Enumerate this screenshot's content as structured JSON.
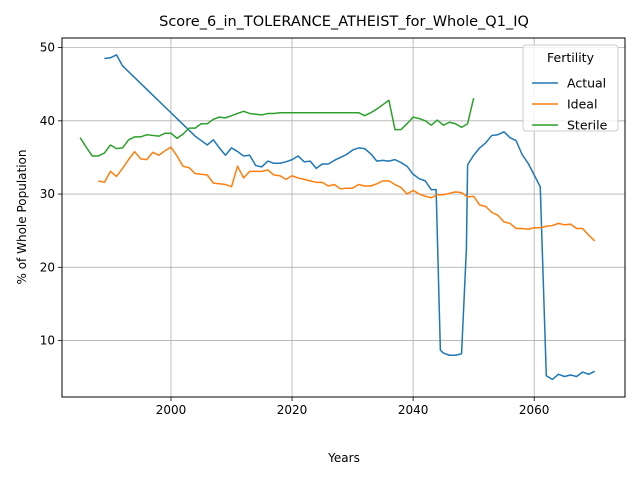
{
  "chart_data": {
    "type": "line",
    "title": "Score_6_in_TOLERANCE_ATHEIST_for_Whole_Q1_IQ",
    "xlabel": "Years",
    "ylabel": "% of Whole Population",
    "xlim": [
      1982,
      2075
    ],
    "ylim": [
      2.3,
      51.3
    ],
    "xticks": [
      2000,
      2020,
      2040,
      2060
    ],
    "yticks": [
      10,
      20,
      30,
      40,
      50
    ],
    "grid": true,
    "legend": {
      "title": "Fertility",
      "placement": "upper right"
    },
    "series": [
      {
        "name": "Actual",
        "color": "#1f77b4",
        "points": [
          [
            1989,
            48.5
          ],
          [
            1990,
            48.6
          ],
          [
            1991,
            49.0
          ],
          [
            1992,
            47.5
          ],
          [
            1993,
            46.7
          ],
          [
            1994,
            45.9
          ],
          [
            1995,
            45.1
          ],
          [
            1996,
            44.3
          ],
          [
            1997,
            43.5
          ],
          [
            1998,
            42.7
          ],
          [
            1999,
            41.9
          ],
          [
            2000,
            41.1
          ],
          [
            2001,
            40.3
          ],
          [
            2002,
            39.5
          ],
          [
            2003,
            38.7
          ],
          [
            2004,
            37.9
          ],
          [
            2005,
            37.3
          ],
          [
            2006,
            36.7
          ],
          [
            2007,
            37.4
          ],
          [
            2008,
            36.3
          ],
          [
            2009,
            35.3
          ],
          [
            2010,
            36.3
          ],
          [
            2011,
            35.8
          ],
          [
            2012,
            35.2
          ],
          [
            2013,
            35.3
          ],
          [
            2014,
            33.9
          ],
          [
            2015,
            33.7
          ],
          [
            2016,
            34.5
          ],
          [
            2017,
            34.2
          ],
          [
            2018,
            34.2
          ],
          [
            2019,
            34.4
          ],
          [
            2020,
            34.7
          ],
          [
            2021,
            35.2
          ],
          [
            2022,
            34.4
          ],
          [
            2023,
            34.5
          ],
          [
            2024,
            33.5
          ],
          [
            2025,
            34.1
          ],
          [
            2026,
            34.1
          ],
          [
            2027,
            34.6
          ],
          [
            2028,
            35.0
          ],
          [
            2029,
            35.4
          ],
          [
            2030,
            36.0
          ],
          [
            2031,
            36.3
          ],
          [
            2032,
            36.2
          ],
          [
            2033,
            35.5
          ],
          [
            2034,
            34.5
          ],
          [
            2035,
            34.6
          ],
          [
            2036,
            34.5
          ],
          [
            2037,
            34.7
          ],
          [
            2038,
            34.3
          ],
          [
            2039,
            33.8
          ],
          [
            2040,
            32.7
          ],
          [
            2041,
            32.1
          ],
          [
            2042,
            31.8
          ],
          [
            2043,
            30.6
          ],
          [
            2043.8,
            30.6
          ],
          [
            2044.5,
            8.7
          ],
          [
            2045,
            8.3
          ],
          [
            2046,
            8.0
          ],
          [
            2047,
            8.0
          ],
          [
            2048,
            8.2
          ],
          [
            2048.8,
            22.5
          ],
          [
            2049,
            34.0
          ],
          [
            2050,
            35.3
          ],
          [
            2051,
            36.3
          ],
          [
            2052,
            37.0
          ],
          [
            2053,
            38.0
          ],
          [
            2054,
            38.1
          ],
          [
            2055,
            38.5
          ],
          [
            2056,
            37.7
          ],
          [
            2057,
            37.3
          ],
          [
            2058,
            35.4
          ],
          [
            2059,
            34.2
          ],
          [
            2060,
            32.6
          ],
          [
            2061,
            31.0
          ],
          [
            2062,
            5.2
          ],
          [
            2063,
            4.7
          ],
          [
            2064,
            5.4
          ],
          [
            2065,
            5.1
          ],
          [
            2066,
            5.3
          ],
          [
            2067,
            5.1
          ],
          [
            2068,
            5.7
          ],
          [
            2069,
            5.4
          ],
          [
            2070,
            5.8
          ]
        ]
      },
      {
        "name": "Ideal",
        "color": "#ff7f0e",
        "points": [
          [
            1988,
            31.8
          ],
          [
            1989,
            31.6
          ],
          [
            1990,
            33.1
          ],
          [
            1991,
            32.4
          ],
          [
            1992,
            33.5
          ],
          [
            1993,
            34.7
          ],
          [
            1994,
            35.8
          ],
          [
            1995,
            34.8
          ],
          [
            1996,
            34.7
          ],
          [
            1997,
            35.7
          ],
          [
            1998,
            35.3
          ],
          [
            1999,
            35.9
          ],
          [
            2000,
            36.4
          ],
          [
            2001,
            35.2
          ],
          [
            2002,
            33.8
          ],
          [
            2003,
            33.6
          ],
          [
            2004,
            32.8
          ],
          [
            2005,
            32.7
          ],
          [
            2006,
            32.6
          ],
          [
            2007,
            31.5
          ],
          [
            2008,
            31.4
          ],
          [
            2009,
            31.3
          ],
          [
            2010,
            31.0
          ],
          [
            2011,
            33.8
          ],
          [
            2012,
            32.2
          ],
          [
            2013,
            33.1
          ],
          [
            2014,
            33.1
          ],
          [
            2015,
            33.1
          ],
          [
            2016,
            33.3
          ],
          [
            2017,
            32.6
          ],
          [
            2018,
            32.5
          ],
          [
            2019,
            32.0
          ],
          [
            2020,
            32.5
          ],
          [
            2021,
            32.2
          ],
          [
            2022,
            32.0
          ],
          [
            2023,
            31.8
          ],
          [
            2024,
            31.6
          ],
          [
            2025,
            31.6
          ],
          [
            2026,
            31.1
          ],
          [
            2027,
            31.3
          ],
          [
            2028,
            30.7
          ],
          [
            2029,
            30.8
          ],
          [
            2030,
            30.8
          ],
          [
            2031,
            31.3
          ],
          [
            2032,
            31.1
          ],
          [
            2033,
            31.1
          ],
          [
            2034,
            31.4
          ],
          [
            2035,
            31.8
          ],
          [
            2036,
            31.8
          ],
          [
            2037,
            31.3
          ],
          [
            2038,
            30.9
          ],
          [
            2039,
            30.0
          ],
          [
            2040,
            30.5
          ],
          [
            2041,
            30.0
          ],
          [
            2042,
            29.7
          ],
          [
            2043,
            29.5
          ],
          [
            2044,
            29.9
          ],
          [
            2045,
            29.9
          ],
          [
            2046,
            30.1
          ],
          [
            2047,
            30.3
          ],
          [
            2048,
            30.2
          ],
          [
            2049,
            29.6
          ],
          [
            2050,
            29.7
          ],
          [
            2051,
            28.5
          ],
          [
            2052,
            28.3
          ],
          [
            2053,
            27.5
          ],
          [
            2054,
            27.1
          ],
          [
            2055,
            26.2
          ],
          [
            2056,
            26.0
          ],
          [
            2057,
            25.3
          ],
          [
            2058,
            25.3
          ],
          [
            2059,
            25.2
          ],
          [
            2060,
            25.4
          ],
          [
            2061,
            25.4
          ],
          [
            2062,
            25.6
          ],
          [
            2063,
            25.7
          ],
          [
            2064,
            26.0
          ],
          [
            2065,
            25.8
          ],
          [
            2066,
            25.9
          ],
          [
            2067,
            25.3
          ],
          [
            2068,
            25.3
          ],
          [
            2069,
            24.4
          ],
          [
            2070,
            23.6
          ]
        ]
      },
      {
        "name": "Sterile",
        "color": "#2ca02c",
        "points": [
          [
            1985,
            37.7
          ],
          [
            1986,
            36.4
          ],
          [
            1987,
            35.2
          ],
          [
            1988,
            35.2
          ],
          [
            1989,
            35.6
          ],
          [
            1990,
            36.7
          ],
          [
            1991,
            36.2
          ],
          [
            1992,
            36.3
          ],
          [
            1993,
            37.4
          ],
          [
            1994,
            37.8
          ],
          [
            1995,
            37.8
          ],
          [
            1996,
            38.1
          ],
          [
            1997,
            38.0
          ],
          [
            1998,
            37.9
          ],
          [
            1999,
            38.3
          ],
          [
            2000,
            38.3
          ],
          [
            2001,
            37.6
          ],
          [
            2002,
            38.2
          ],
          [
            2003,
            39.0
          ],
          [
            2004,
            39.0
          ],
          [
            2005,
            39.6
          ],
          [
            2006,
            39.6
          ],
          [
            2007,
            40.2
          ],
          [
            2008,
            40.5
          ],
          [
            2009,
            40.4
          ],
          [
            2010,
            40.7
          ],
          [
            2011,
            41.0
          ],
          [
            2012,
            41.3
          ],
          [
            2013,
            41.0
          ],
          [
            2014,
            40.9
          ],
          [
            2015,
            40.8
          ],
          [
            2016,
            41.0
          ],
          [
            2017,
            41.0
          ],
          [
            2018,
            41.1
          ],
          [
            2019,
            41.1
          ],
          [
            2020,
            41.1
          ],
          [
            2021,
            41.1
          ],
          [
            2022,
            41.1
          ],
          [
            2023,
            41.1
          ],
          [
            2024,
            41.1
          ],
          [
            2025,
            41.1
          ],
          [
            2026,
            41.1
          ],
          [
            2027,
            41.1
          ],
          [
            2028,
            41.1
          ],
          [
            2029,
            41.1
          ],
          [
            2030,
            41.1
          ],
          [
            2031,
            41.1
          ],
          [
            2032,
            40.7
          ],
          [
            2033,
            41.1
          ],
          [
            2034,
            41.6
          ],
          [
            2035,
            42.2
          ],
          [
            2036,
            42.8
          ],
          [
            2037,
            38.8
          ],
          [
            2038,
            38.8
          ],
          [
            2039,
            39.6
          ],
          [
            2040,
            40.5
          ],
          [
            2041,
            40.3
          ],
          [
            2042,
            40.0
          ],
          [
            2043,
            39.4
          ],
          [
            2044,
            40.1
          ],
          [
            2045,
            39.4
          ],
          [
            2046,
            39.8
          ],
          [
            2047,
            39.6
          ],
          [
            2048,
            39.1
          ],
          [
            2049,
            39.6
          ],
          [
            2050,
            43.1
          ]
        ]
      }
    ]
  }
}
